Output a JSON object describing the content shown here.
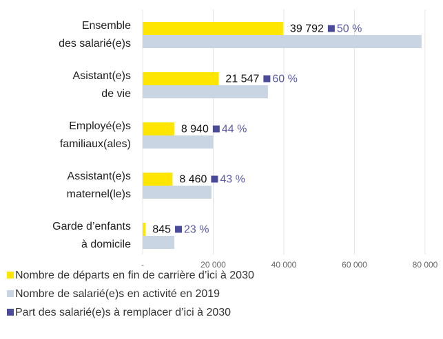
{
  "chart_data": {
    "type": "bar",
    "orientation": "horizontal",
    "categories": [
      [
        "Ensemble",
        "des salarié(e)s"
      ],
      [
        "Asistant(e)s",
        "de vie"
      ],
      [
        "Employé(e)s",
        "familiaux(ales)"
      ],
      [
        "Assistant(e)s",
        "maternel(le)s"
      ],
      [
        "Garde d’enfants",
        "à domicile"
      ]
    ],
    "series": [
      {
        "name": "Nombre de départs en fin de carrière d’ici à 2030",
        "color": "#ffe600",
        "values": [
          39792,
          21547,
          8940,
          8460,
          845
        ],
        "value_labels": [
          "39 792",
          "21 547",
          "8 940",
          "8 460",
          "845"
        ]
      },
      {
        "name": "Nombre de salarié(e)s en activité en 2019",
        "color": "#c9d5e3",
        "values": [
          79000,
          35500,
          20000,
          19500,
          9000
        ]
      },
      {
        "name": "Part des salarié(e)s à remplacer d’ici à 2030",
        "color": "#4b4b9b",
        "kind": "marker",
        "values": [
          50,
          60,
          44,
          43,
          23
        ],
        "value_labels": [
          "50 %",
          "60 %",
          "44 %",
          "43 %",
          "23 %"
        ]
      }
    ],
    "xlim": [
      0,
      80000
    ],
    "xticks": [
      {
        "value": 0,
        "label": "-"
      },
      {
        "value": 20000,
        "label": "20 000"
      },
      {
        "value": 40000,
        "label": "40 000"
      },
      {
        "value": 60000,
        "label": "60 000"
      },
      {
        "value": 80000,
        "label": "80 000"
      }
    ],
    "grid": true,
    "legend": "bottom-left"
  }
}
